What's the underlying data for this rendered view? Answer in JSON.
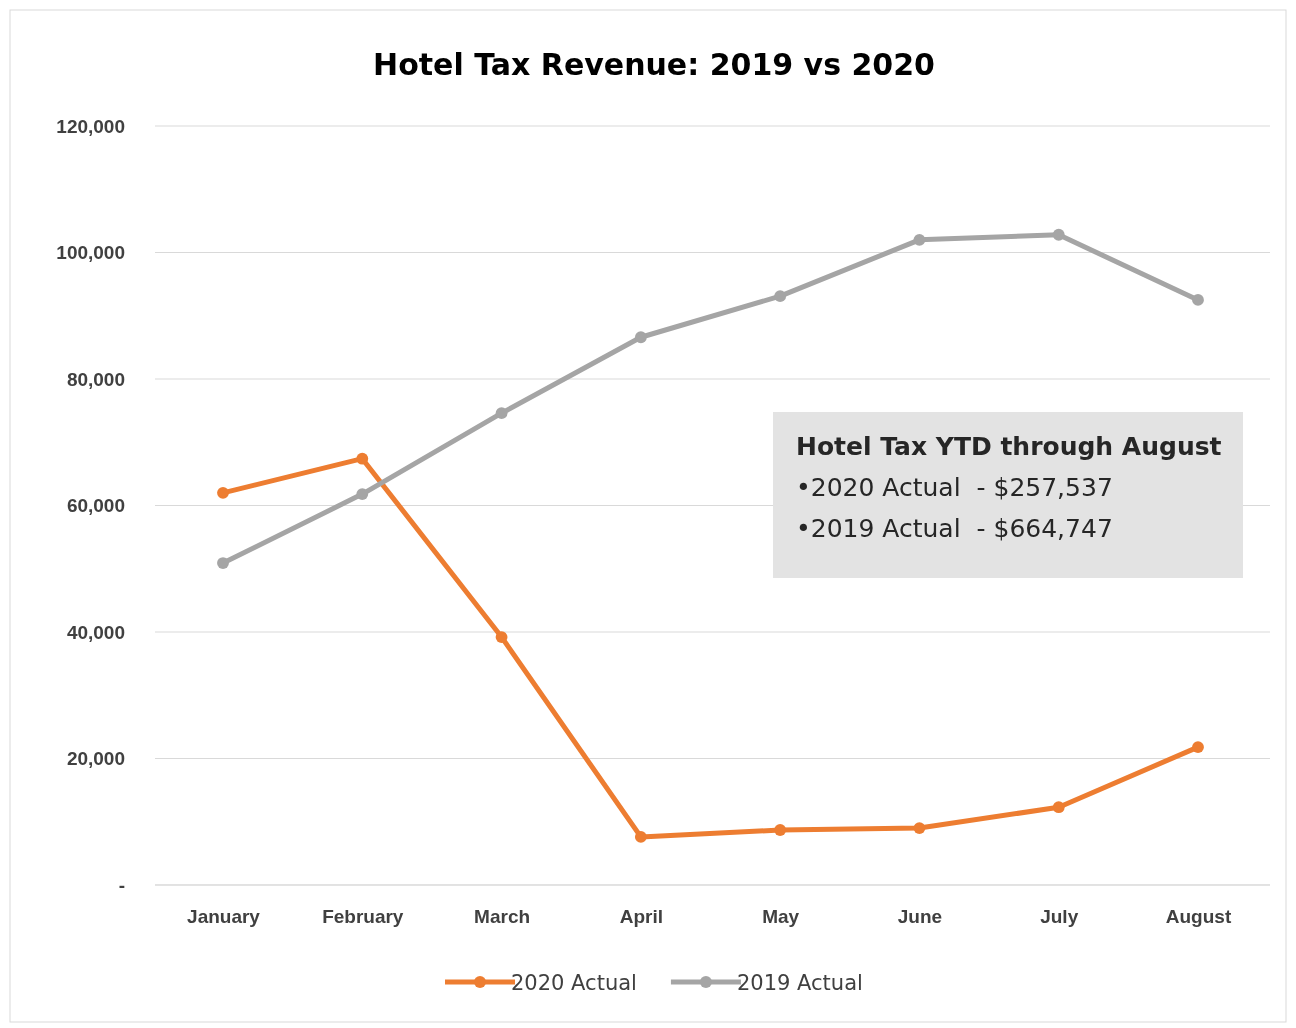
{
  "chart_data": {
    "type": "line",
    "title": "Hotel Tax Revenue: 2019 vs 2020",
    "categories": [
      "January",
      "February",
      "March",
      "April",
      "May",
      "June",
      "July",
      "August"
    ],
    "series": [
      {
        "name": "2020 Actual",
        "color": "#ed7d31",
        "values": [
          62000,
          67400,
          39200,
          7600,
          8700,
          9000,
          12300,
          21800
        ]
      },
      {
        "name": "2019 Actual",
        "color": "#a5a5a5",
        "values": [
          50900,
          61800,
          74600,
          86600,
          93100,
          102000,
          102800,
          92500
        ]
      }
    ],
    "ylim": [
      0,
      120000
    ],
    "yticks": [
      {
        "value": 0,
        "label": "-"
      },
      {
        "value": 20000,
        "label": "20,000"
      },
      {
        "value": 40000,
        "label": "40,000"
      },
      {
        "value": 60000,
        "label": "60,000"
      },
      {
        "value": 80000,
        "label": "80,000"
      },
      {
        "value": 100000,
        "label": "100,000"
      },
      {
        "value": 120000,
        "label": "120,000"
      }
    ],
    "annotations": [
      "Hotel Tax YTD through August",
      "•2020 Actual  - $257,537",
      "•2019 Actual  - $664,747"
    ],
    "grid": "y",
    "legend": "bottom",
    "marker": "circle",
    "line_style": "solid"
  }
}
